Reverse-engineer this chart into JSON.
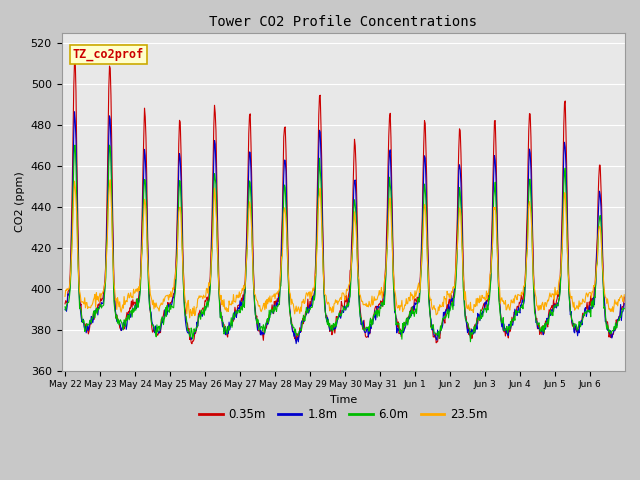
{
  "title": "Tower CO2 Profile Concentrations",
  "xlabel": "Time",
  "ylabel": "CO2 (ppm)",
  "ylim": [
    360,
    525
  ],
  "yticks": [
    360,
    380,
    400,
    420,
    440,
    460,
    480,
    500,
    520
  ],
  "series_labels": [
    "0.35m",
    "1.8m",
    "6.0m",
    "23.5m"
  ],
  "series_colors": [
    "#cc0000",
    "#0000cc",
    "#00bb00",
    "#ffaa00"
  ],
  "x_tick_labels": [
    "May 22",
    "May 23",
    "May 24",
    "May 25",
    "May 26",
    "May 27",
    "May 28",
    "May 29",
    "May 30",
    "May 31",
    "Jun 1",
    "Jun 2",
    "Jun 3",
    "Jun 4",
    "Jun 5",
    "Jun 6"
  ],
  "annotation_text": "TZ_co2prof",
  "annotation_bg": "#ffffcc",
  "annotation_border": "#ccaa00",
  "fig_bg": "#c8c8c8",
  "plot_bg": "#e8e8e8",
  "linewidth": 0.8,
  "n_days": 16,
  "pts_per_day": 48
}
